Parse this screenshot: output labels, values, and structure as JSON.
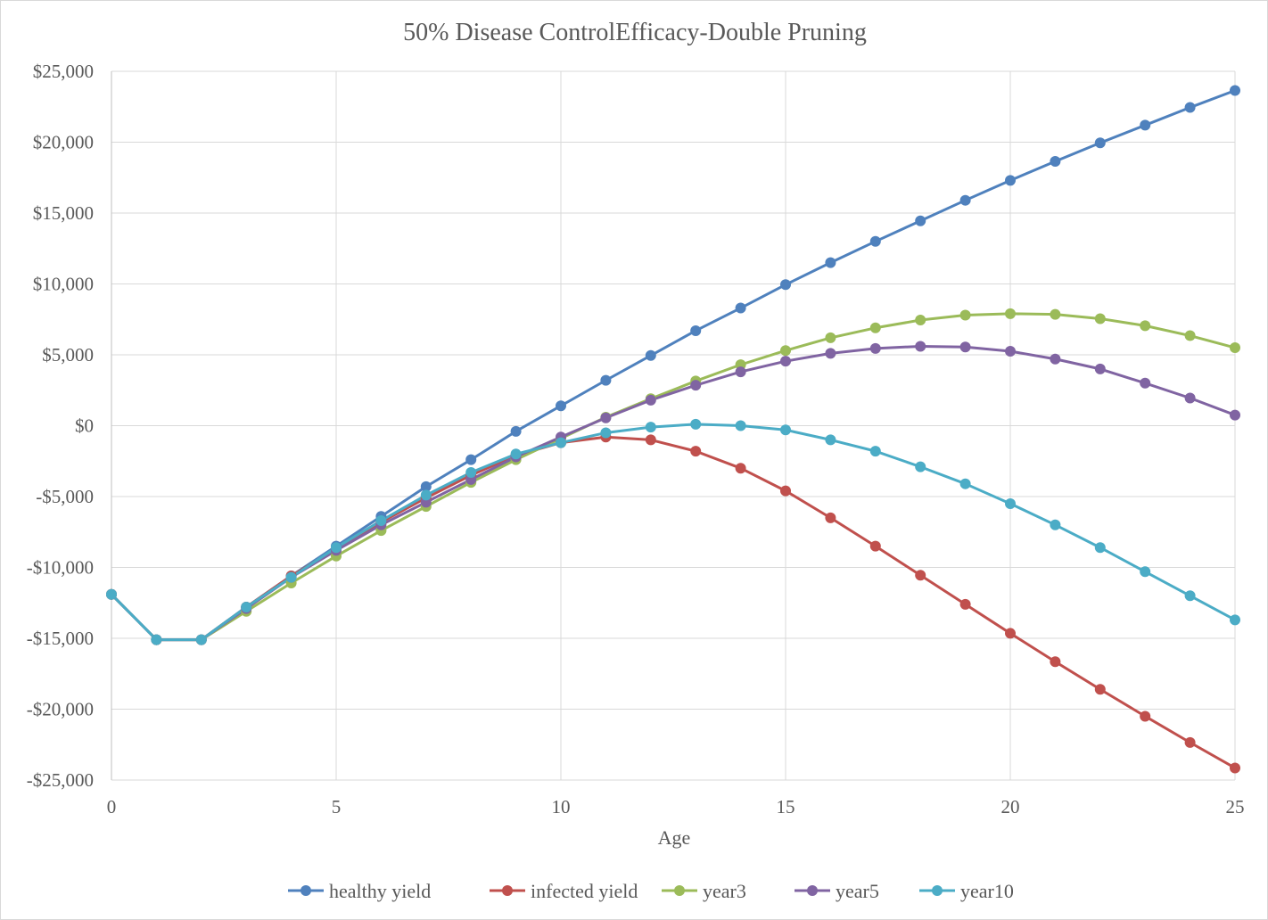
{
  "chart_data": {
    "type": "line",
    "title": "50% Disease ControlEfficacy-Double Pruning",
    "xlabel": "Age",
    "ylabel": "",
    "x": [
      0,
      1,
      2,
      3,
      4,
      5,
      6,
      7,
      8,
      9,
      10,
      11,
      12,
      13,
      14,
      15,
      16,
      17,
      18,
      19,
      20,
      21,
      22,
      23,
      24,
      25
    ],
    "xlim": [
      0,
      25
    ],
    "ylim": [
      -25000,
      25000
    ],
    "x_ticks": [
      0,
      5,
      10,
      15,
      20,
      25
    ],
    "x_tick_labels": [
      "0",
      "5",
      "10",
      "15",
      "20",
      "25"
    ],
    "y_ticks": [
      25000,
      20000,
      15000,
      10000,
      5000,
      0,
      -5000,
      -10000,
      -15000,
      -20000,
      -25000
    ],
    "y_tick_labels": [
      "$25,000",
      "$20,000",
      "$15,000",
      "$10,000",
      "$5,000",
      "$0",
      "-$5,000",
      "-$10,000",
      "-$15,000",
      "-$20,000",
      "-$25,000"
    ],
    "grid": true,
    "legend_position": "bottom",
    "series": [
      {
        "name": "healthy yield",
        "color": "#4f81bd",
        "values": [
          -11900,
          -15100,
          -15100,
          -12800,
          -10600,
          -8500,
          -6400,
          -4300,
          -2400,
          -400,
          1400,
          3200,
          4950,
          6700,
          8300,
          9950,
          11500,
          13000,
          14450,
          15900,
          17300,
          18650,
          19950,
          21200,
          22450,
          23650
        ]
      },
      {
        "name": "infected yield",
        "color": "#c0504d",
        "values": [
          -11900,
          -15100,
          -15100,
          -12800,
          -10600,
          -8700,
          -6800,
          -5100,
          -3500,
          -2100,
          -1200,
          -800,
          -1000,
          -1800,
          -3000,
          -4600,
          -6500,
          -8500,
          -10550,
          -12600,
          -14650,
          -16650,
          -18600,
          -20500,
          -22350,
          -24150
        ]
      },
      {
        "name": "year3",
        "color": "#9bbb59",
        "values": [
          -11900,
          -15100,
          -15100,
          -13100,
          -11100,
          -9200,
          -7400,
          -5700,
          -4000,
          -2400,
          -900,
          600,
          1900,
          3150,
          4300,
          5300,
          6200,
          6900,
          7450,
          7800,
          7900,
          7850,
          7550,
          7050,
          6350,
          5500
        ]
      },
      {
        "name": "year5",
        "color": "#8064a2",
        "values": [
          -11900,
          -15100,
          -15100,
          -12900,
          -10700,
          -8800,
          -7000,
          -5400,
          -3800,
          -2200,
          -800,
          550,
          1800,
          2850,
          3800,
          4550,
          5100,
          5450,
          5600,
          5550,
          5250,
          4700,
          4000,
          3000,
          1950,
          750
        ]
      },
      {
        "name": "year10",
        "color": "#4bacc6",
        "values": [
          -11900,
          -15100,
          -15100,
          -12800,
          -10700,
          -8600,
          -6700,
          -4900,
          -3300,
          -2000,
          -1200,
          -500,
          -100,
          100,
          0,
          -300,
          -1000,
          -1800,
          -2900,
          -4100,
          -5500,
          -7000,
          -8600,
          -10300,
          -12000,
          -13700
        ]
      }
    ]
  }
}
